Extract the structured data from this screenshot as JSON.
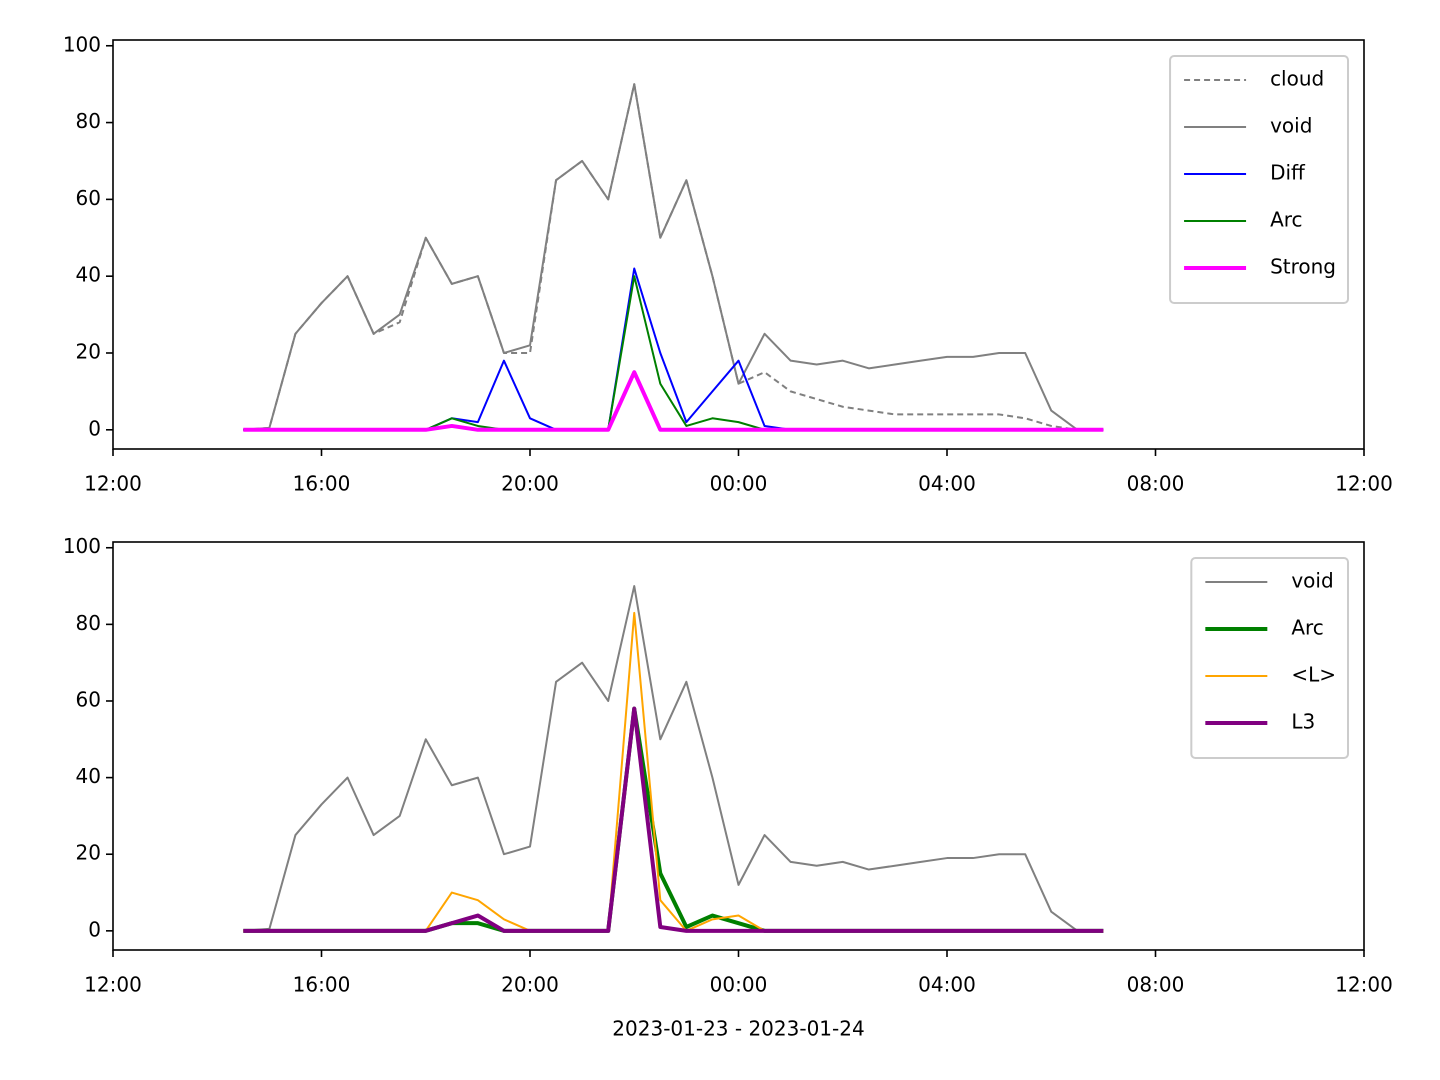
{
  "chart_data": [
    {
      "type": "line",
      "x": [
        14.5,
        15,
        15.5,
        16,
        16.5,
        17,
        17.5,
        18,
        18.5,
        19,
        19.5,
        20,
        20.5,
        21,
        21.5,
        22,
        22.5,
        23,
        23.5,
        24,
        24.5,
        25,
        25.5,
        26,
        26.5,
        27,
        27.5,
        28,
        28.5,
        29,
        29.5,
        30,
        30.5,
        31
      ],
      "series": [
        {
          "name": "cloud",
          "color": "#808080",
          "linestyle": "dashed",
          "linewidth": 2,
          "values": [
            0,
            0.5,
            25,
            33,
            40,
            25,
            28,
            50,
            38,
            40,
            20,
            20,
            65,
            70,
            60,
            90,
            50,
            65,
            40,
            12,
            15,
            10,
            8,
            6,
            5,
            4,
            4,
            4,
            4,
            4,
            3,
            1,
            0,
            0
          ]
        },
        {
          "name": "void",
          "color": "#808080",
          "linestyle": "solid",
          "linewidth": 2,
          "values": [
            0,
            0.5,
            25,
            33,
            40,
            25,
            30,
            50,
            38,
            40,
            20,
            22,
            65,
            70,
            60,
            90,
            50,
            65,
            40,
            12,
            25,
            18,
            17,
            18,
            16,
            17,
            18,
            19,
            19,
            20,
            20,
            5,
            0,
            0
          ]
        },
        {
          "name": "Diff",
          "color": "#0000ff",
          "linestyle": "solid",
          "linewidth": 2,
          "values": [
            0,
            0,
            0,
            0,
            0,
            0,
            0,
            0,
            3,
            2,
            18,
            3,
            0,
            0,
            0,
            42,
            20,
            2,
            10,
            18,
            1,
            0,
            0,
            0,
            0,
            0,
            0,
            0,
            0,
            0,
            0,
            0,
            0,
            0
          ]
        },
        {
          "name": "Arc",
          "color": "#008000",
          "linestyle": "solid",
          "linewidth": 2,
          "values": [
            0,
            0,
            0,
            0,
            0,
            0,
            0,
            0,
            3,
            1,
            0,
            0,
            0,
            0,
            0,
            40,
            12,
            1,
            3,
            2,
            0,
            0,
            0,
            0,
            0,
            0,
            0,
            0,
            0,
            0,
            0,
            0,
            0,
            0
          ]
        },
        {
          "name": "Strong",
          "color": "#ff00ff",
          "linestyle": "solid",
          "linewidth": 4,
          "values": [
            0,
            0,
            0,
            0,
            0,
            0,
            0,
            0,
            1,
            0,
            0,
            0,
            0,
            0,
            0,
            15,
            0,
            0,
            0,
            0,
            0,
            0,
            0,
            0,
            0,
            0,
            0,
            0,
            0,
            0,
            0,
            0,
            0,
            0
          ]
        }
      ],
      "xlim": [
        12,
        36
      ],
      "xticks": [
        {
          "value": 12,
          "label": "12:00"
        },
        {
          "value": 16,
          "label": "16:00"
        },
        {
          "value": 20,
          "label": "20:00"
        },
        {
          "value": 24,
          "label": "00:00"
        },
        {
          "value": 28,
          "label": "04:00"
        },
        {
          "value": 32,
          "label": "08:00"
        },
        {
          "value": 36,
          "label": "12:00"
        }
      ],
      "ylim": [
        -5,
        101.5
      ],
      "yticks": [
        0,
        20,
        40,
        60,
        80,
        100
      ],
      "legend": "upper right"
    },
    {
      "type": "line",
      "x": [
        14.5,
        15,
        15.5,
        16,
        16.5,
        17,
        17.5,
        18,
        18.5,
        19,
        19.5,
        20,
        20.5,
        21,
        21.5,
        22,
        22.5,
        23,
        23.5,
        24,
        24.5,
        25,
        25.5,
        26,
        26.5,
        27,
        27.5,
        28,
        28.5,
        29,
        29.5,
        30,
        30.5,
        31
      ],
      "series": [
        {
          "name": "void",
          "color": "#808080",
          "linestyle": "solid",
          "linewidth": 2,
          "values": [
            0,
            0.5,
            25,
            33,
            40,
            25,
            30,
            50,
            38,
            40,
            20,
            22,
            65,
            70,
            60,
            90,
            50,
            65,
            40,
            12,
            25,
            18,
            17,
            18,
            16,
            17,
            18,
            19,
            19,
            20,
            20,
            5,
            0,
            0
          ]
        },
        {
          "name": "Arc",
          "color": "#008000",
          "linestyle": "solid",
          "linewidth": 4,
          "values": [
            0,
            0,
            0,
            0,
            0,
            0,
            0,
            0,
            2,
            2,
            0,
            0,
            0,
            0,
            0,
            58,
            15,
            1,
            4,
            2,
            0,
            0,
            0,
            0,
            0,
            0,
            0,
            0,
            0,
            0,
            0,
            0,
            0,
            0
          ]
        },
        {
          "name": "<L>",
          "color": "#ffa500",
          "linestyle": "solid",
          "linewidth": 2,
          "values": [
            0,
            0,
            0,
            0,
            0,
            0,
            0,
            0,
            10,
            8,
            3,
            0,
            0,
            0,
            0,
            83,
            8,
            0,
            3,
            4,
            0,
            0,
            0,
            0,
            0,
            0,
            0,
            0,
            0,
            0,
            0,
            0,
            0,
            0
          ]
        },
        {
          "name": "L3",
          "color": "#800080",
          "linestyle": "solid",
          "linewidth": 4,
          "values": [
            0,
            0,
            0,
            0,
            0,
            0,
            0,
            0,
            2,
            4,
            0,
            0,
            0,
            0,
            0,
            58,
            1,
            0,
            0,
            0,
            0,
            0,
            0,
            0,
            0,
            0,
            0,
            0,
            0,
            0,
            0,
            0,
            0,
            0
          ]
        }
      ],
      "xlim": [
        12,
        36
      ],
      "xticks": [
        {
          "value": 12,
          "label": "12:00"
        },
        {
          "value": 16,
          "label": "16:00"
        },
        {
          "value": 20,
          "label": "20:00"
        },
        {
          "value": 24,
          "label": "00:00"
        },
        {
          "value": 28,
          "label": "04:00"
        },
        {
          "value": 32,
          "label": "08:00"
        },
        {
          "value": 36,
          "label": "12:00"
        }
      ],
      "ylim": [
        -5,
        101.5
      ],
      "yticks": [
        0,
        20,
        40,
        60,
        80,
        100
      ],
      "xlabel": "2023-01-23 - 2023-01-24",
      "legend": "upper right"
    }
  ]
}
